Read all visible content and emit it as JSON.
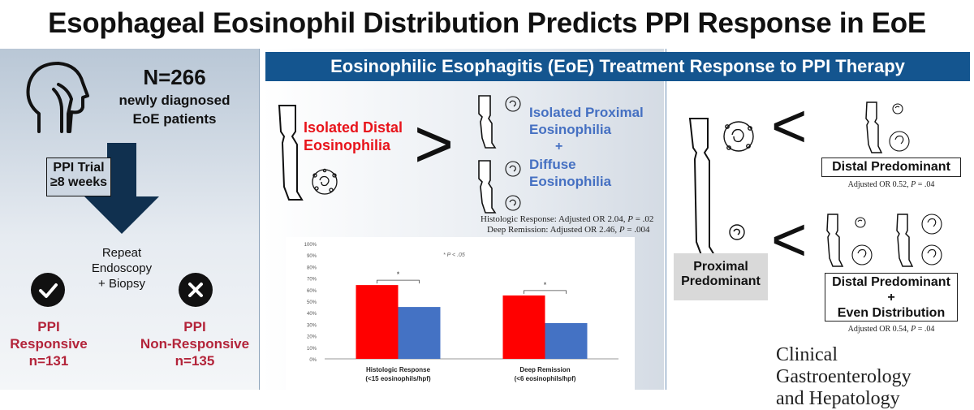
{
  "title": "Esophageal Eosinophil Distribution Predicts PPI Response in EoE",
  "left": {
    "n_label": "N=266",
    "desc_line1": "newly diagnosed",
    "desc_line2": "EoE patients",
    "trial_line1": "PPI Trial",
    "trial_line2": "≥8 weeks",
    "repeat_line1": "Repeat",
    "repeat_line2": "Endoscopy",
    "repeat_line3": "+ Biopsy",
    "responsive_line1": "PPI",
    "responsive_line2": "Responsive",
    "responsive_count": "n=131",
    "nonresponsive_line1": "PPI",
    "nonresponsive_line2": "Non-Responsive",
    "nonresponsive_count": "n=135"
  },
  "banner": "Eosinophilic Esophagitis (EoE) Treatment Response to PPI Therapy",
  "middle": {
    "distal_line1": "Isolated Distal",
    "distal_line2": "Eosinophilia",
    "greater_symbol": ">",
    "prox_line1": "Isolated Proximal",
    "prox_line2": "Eosinophilia",
    "plus": "+",
    "diffuse_line1": "Diffuse",
    "diffuse_line2": "Eosinophilia",
    "stat1_prefix": "Histologic Response: Adjusted OR 2.04, ",
    "stat1_p": "P",
    "stat1_suffix": " = .02",
    "stat2_prefix": "Deep Remission: Adjusted OR 2.46, ",
    "stat2_p": "P",
    "stat2_suffix": " = .004"
  },
  "chart_data": {
    "type": "bar",
    "categories": [
      "Histologic Response",
      "Deep Remission"
    ],
    "category_sublabels": [
      "(<15 eosinophils/hpf)",
      "(<6 eosinophils/hpf)"
    ],
    "series": [
      {
        "color": "#ff0000",
        "values": [
          64,
          55
        ]
      },
      {
        "color": "#4472c4",
        "values": [
          45,
          31
        ]
      }
    ],
    "ylim": [
      0,
      100
    ],
    "yticks": [
      "0%",
      "10%",
      "20%",
      "30%",
      "40%",
      "50%",
      "60%",
      "70%",
      "80%",
      "90%",
      "100%"
    ],
    "significance_marks": [
      "*",
      "*"
    ],
    "annotation": "* P < .05"
  },
  "right": {
    "lt_symbol": "<",
    "distal_predominant": "Distal  Predominant",
    "or1_prefix": "Adjusted OR 0.52, ",
    "or1_p": "P",
    "or1_suffix": " = .04",
    "proximal_line1": "Proximal",
    "proximal_line2": "Predominant",
    "combo_line1": "Distal Predominant",
    "combo_plus": "+",
    "combo_line2": "Even Distribution",
    "or2_prefix": "Adjusted OR 0.54, ",
    "or2_p": "P",
    "or2_suffix": " = .04",
    "journal_line1": "Clinical Gastroenterology",
    "journal_line2": "and Hepatology"
  },
  "colors": {
    "banner": "#14558f",
    "distal_red": "#e8141b",
    "proximal_blue": "#4570c2",
    "outcome_red": "#b3243a",
    "arrow_navy": "#10304f"
  }
}
